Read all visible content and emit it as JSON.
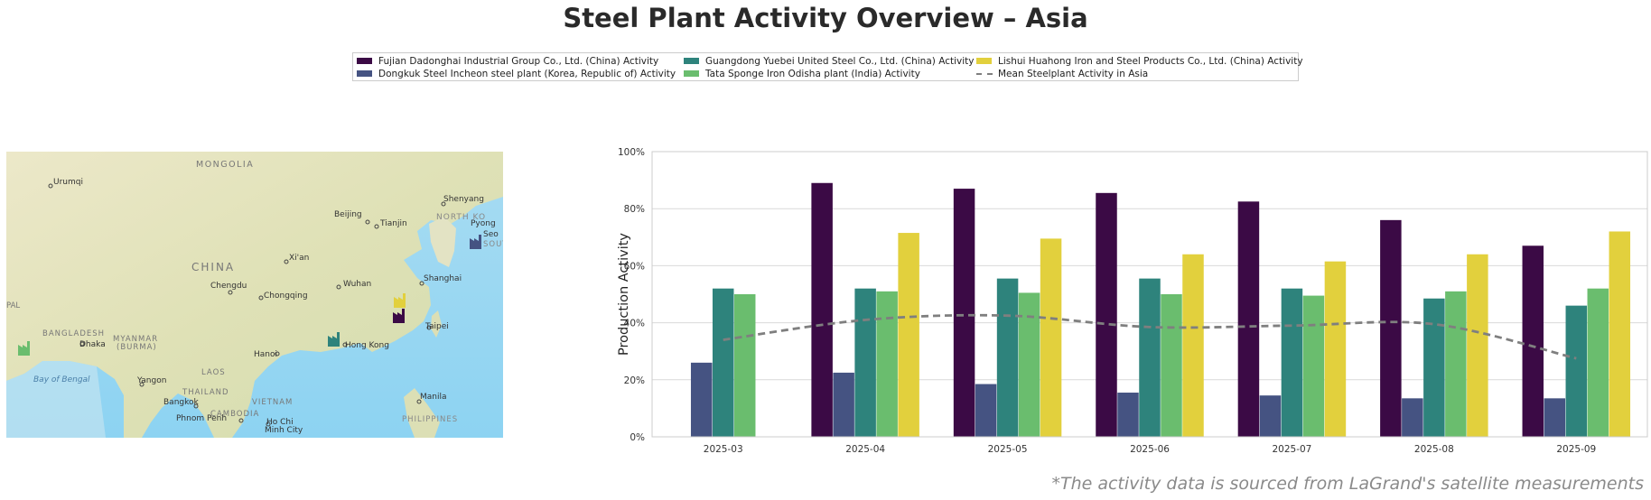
{
  "title": "Steel Plant Activity Overview – Asia",
  "source_note": "*The activity data is sourced from LaGrand's satellite measurements",
  "legend": [
    {
      "label": "Fujian Dadonghai Industrial Group Co., Ltd. (China) Activity",
      "color": "#3b0a45",
      "kind": "bar"
    },
    {
      "label": "Dongkuk Steel Incheon steel plant (Korea, Republic of) Activity",
      "color": "#455382",
      "kind": "bar"
    },
    {
      "label": "Guangdong Yuebei United Steel Co., Ltd. (China) Activity",
      "color": "#2e837c",
      "kind": "bar"
    },
    {
      "label": "Tata Sponge Iron Odisha plant (India) Activity",
      "color": "#6abd6e",
      "kind": "bar"
    },
    {
      "label": "Lishui Huahong Iron and Steel Products Co., Ltd. (China) Activity",
      "color": "#e2d03d",
      "kind": "bar"
    },
    {
      "label": "Mean Steelplant Activity in Asia",
      "color": "#7f7f7f",
      "kind": "line"
    }
  ],
  "map": {
    "labels": {
      "mongolia": "MONGOLIA",
      "urumqi": "Urumqi",
      "beijing": "Beijing",
      "tianjin": "Tianjin",
      "shenyang": "Shenyang",
      "north_korea": "NORTH KO",
      "pyong": "Pyong",
      "seo": "Seo",
      "south": "SOUTH",
      "china": "CHINA",
      "xian": "Xi'an",
      "chengdu": "Chengdu",
      "chongqing": "Chongqing",
      "wuhan": "Wuhan",
      "shanghai": "Shanghai",
      "pal": "PAL",
      "bangladesh": "BANGLADESH",
      "dhaka": "Dhaka",
      "myanmar": "MYANMAR",
      "burma": "(BURMA)",
      "hanoi": "Hanoi",
      "hong_kong": "Hong Kong",
      "taipei": "Taipei",
      "bay_of_bengal": "Bay of Bengal",
      "yangon": "Yangon",
      "laos": "LAOS",
      "thailand": "THAILAND",
      "vietnam": "VIETNAM",
      "bangkok": "Bangkok",
      "cambodia": "CAMBODIA",
      "phnom_penh": "Phnom Penh",
      "ho_chi": "Ho Chi",
      "minh_city": "Minh City",
      "manila": "Manila",
      "philippines": "PHILIPPINES"
    },
    "markers": [
      {
        "plant": "Fujian Dadonghai",
        "color": "#3b0a45",
        "icon": "factory-icon"
      },
      {
        "plant": "Dongkuk Steel Incheon",
        "color": "#455382",
        "icon": "factory-icon"
      },
      {
        "plant": "Guangdong Yuebei",
        "color": "#2e837c",
        "icon": "factory-icon"
      },
      {
        "plant": "Tata Sponge Iron Odisha",
        "color": "#6abd6e",
        "icon": "factory-icon"
      },
      {
        "plant": "Lishui Huahong",
        "color": "#e2d03d",
        "icon": "factory-icon"
      }
    ]
  },
  "chart_data": {
    "type": "bar",
    "ylabel": "Production Activity",
    "xlabel": "",
    "ylim": [
      0,
      100
    ],
    "yticks": [
      0,
      20,
      40,
      60,
      80,
      100
    ],
    "ytick_labels": [
      "0%",
      "20%",
      "40%",
      "60%",
      "80%",
      "100%"
    ],
    "grid": true,
    "categories": [
      "2025-03",
      "2025-04",
      "2025-05",
      "2025-06",
      "2025-07",
      "2025-08",
      "2025-09"
    ],
    "series": [
      {
        "name": "Fujian Dadonghai Industrial Group Co., Ltd. (China) Activity",
        "color": "#3b0a45",
        "values": [
          null,
          89,
          87,
          85.5,
          82.5,
          76,
          67
        ]
      },
      {
        "name": "Dongkuk Steel Incheon steel plant (Korea, Republic of) Activity",
        "color": "#455382",
        "values": [
          26,
          22.5,
          18.5,
          15.5,
          14.5,
          13.5,
          13.5
        ]
      },
      {
        "name": "Guangdong Yuebei United Steel Co., Ltd. (China) Activity",
        "color": "#2e837c",
        "values": [
          52,
          52,
          55.5,
          55.5,
          52,
          48.5,
          46
        ]
      },
      {
        "name": "Tata Sponge Iron Odisha plant (India) Activity",
        "color": "#6abd6e",
        "values": [
          50,
          51,
          50.5,
          50,
          49.5,
          51,
          52
        ]
      },
      {
        "name": "Lishui Huahong Iron and Steel Products Co., Ltd. (China) Activity",
        "color": "#e2d03d",
        "values": [
          null,
          71.5,
          69.5,
          64,
          61.5,
          64,
          72
        ]
      }
    ],
    "mean_line": {
      "name": "Mean Steelplant Activity in Asia",
      "color": "#7f7f7f",
      "style": "dashed",
      "values": [
        34,
        41,
        42.5,
        38.5,
        39,
        39.5,
        27.5
      ]
    }
  }
}
